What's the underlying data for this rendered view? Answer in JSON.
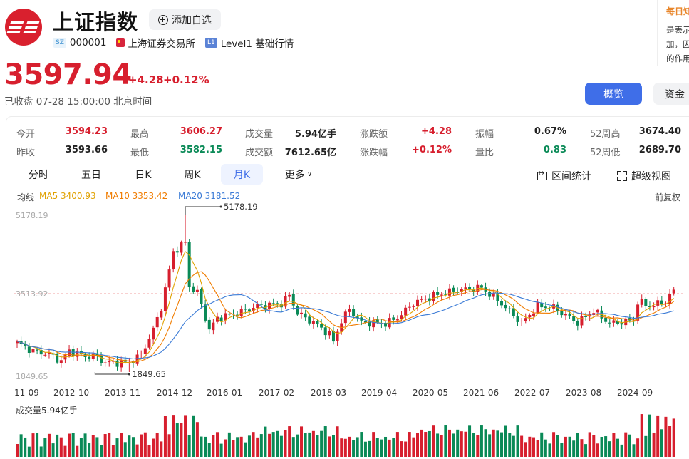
{
  "header": {
    "title": "上证指数",
    "add_label": "添加自选",
    "code_badge": "SZ",
    "code": "000001",
    "exchange": "上海证券交易所",
    "level_badge": "L1",
    "level": "Level1 基础行情"
  },
  "quote": {
    "price": "3597.94",
    "change": "+4.28",
    "change_pct": "+0.12%",
    "status": "已收盘  07-28 15:00:00 北京时间"
  },
  "buttons": {
    "overview": "概览",
    "fund": "资金"
  },
  "side_panel": {
    "title": "每日知",
    "lines": [
      "是表示",
      "加，因",
      "的作用"
    ]
  },
  "stats": [
    {
      "label": "今开",
      "value": "3594.23",
      "color": "up"
    },
    {
      "label": "最高",
      "value": "3606.27",
      "color": "up"
    },
    {
      "label": "成交量",
      "value": "5.94亿手",
      "color": ""
    },
    {
      "label": "涨跌额",
      "value": "+4.28",
      "color": "up"
    },
    {
      "label": "振幅",
      "value": "0.67%",
      "color": ""
    },
    {
      "label": "52周高",
      "value": "3674.40",
      "color": ""
    },
    {
      "label": "昨收",
      "value": "3593.66",
      "color": ""
    },
    {
      "label": "最低",
      "value": "3582.15",
      "color": "down"
    },
    {
      "label": "成交额",
      "value": "7612.65亿",
      "color": ""
    },
    {
      "label": "涨跌幅",
      "value": "+0.12%",
      "color": "up"
    },
    {
      "label": "量比",
      "value": "0.83",
      "color": "down"
    },
    {
      "label": "52周低",
      "value": "2689.70",
      "color": ""
    }
  ],
  "period_tabs": [
    "分时",
    "五日",
    "日K",
    "周K",
    "月K",
    "更多"
  ],
  "active_tab": "月K",
  "tools": {
    "range": "区间统计",
    "fullscreen": "超级视图"
  },
  "indicators": {
    "label": "均线",
    "ma5": "MA5 3400.93",
    "ma10": "MA10 3353.42",
    "ma20": "MA20 3181.52",
    "adjust": "前复权"
  },
  "volume_label": "成交量5.94亿手",
  "colors": {
    "up": "#d71f2e",
    "down": "#0a8a57",
    "ma5": "#e0a100",
    "ma10": "#f07c00",
    "ma20": "#3b7bd6",
    "accent": "#3f6ee8"
  },
  "chart_data": {
    "type": "candlestick",
    "period": "monthly",
    "y_axis_labels": [
      "5178.19",
      "3513.92",
      "1849.65"
    ],
    "ylim": [
      1849.65,
      5178.19
    ],
    "x_ticks": [
      "11-09",
      "2012-10",
      "2013-11",
      "2014-12",
      "2016-01",
      "2017-02",
      "2018-03",
      "2019-04",
      "2020-05",
      "2021-06",
      "2022-07",
      "2023-08",
      "2024-09"
    ],
    "annotations": {
      "max": "5178.19",
      "min": "1849.65"
    },
    "reference_line": 3513.92,
    "anchors": [
      {
        "month": 0,
        "close": 2470
      },
      {
        "month": 4,
        "close": 2290
      },
      {
        "month": 8,
        "close": 2230
      },
      {
        "month": 11,
        "close": 2080
      },
      {
        "month": 13,
        "close": 2300
      },
      {
        "month": 17,
        "close": 2180
      },
      {
        "month": 19,
        "close": 2200
      },
      {
        "month": 22,
        "close": 2050
      },
      {
        "month": 28,
        "close": 2050
      },
      {
        "month": 31,
        "close": 2220
      },
      {
        "month": 34,
        "close": 2750
      },
      {
        "month": 36,
        "close": 3220
      },
      {
        "month": 39,
        "close": 4400
      },
      {
        "month": 42,
        "close": 4611
      },
      {
        "month": 43,
        "close": 3660
      },
      {
        "month": 45,
        "close": 3540
      },
      {
        "month": 48,
        "close": 2740
      },
      {
        "month": 50,
        "close": 3000
      },
      {
        "month": 55,
        "close": 3100
      },
      {
        "month": 60,
        "close": 3250
      },
      {
        "month": 66,
        "close": 3300
      },
      {
        "month": 68,
        "close": 3480
      },
      {
        "month": 70,
        "close": 3100
      },
      {
        "month": 75,
        "close": 2850
      },
      {
        "month": 78,
        "close": 2650
      },
      {
        "month": 79,
        "close": 2494
      },
      {
        "month": 81,
        "close": 2940
      },
      {
        "month": 83,
        "close": 3180
      },
      {
        "month": 86,
        "close": 2900
      },
      {
        "month": 92,
        "close": 2880
      },
      {
        "month": 95,
        "close": 3000
      },
      {
        "month": 99,
        "close": 3310
      },
      {
        "month": 104,
        "close": 3470
      },
      {
        "month": 110,
        "close": 3590
      },
      {
        "month": 116,
        "close": 3640
      },
      {
        "month": 121,
        "close": 3300
      },
      {
        "month": 126,
        "close": 2890
      },
      {
        "month": 130,
        "close": 3250
      },
      {
        "month": 134,
        "close": 3210
      },
      {
        "month": 140,
        "close": 2900
      },
      {
        "month": 144,
        "close": 3150
      },
      {
        "month": 148,
        "close": 2880
      },
      {
        "month": 154,
        "close": 2950
      },
      {
        "month": 155,
        "close": 3336
      },
      {
        "month": 158,
        "close": 3250
      },
      {
        "month": 162,
        "close": 3350
      },
      {
        "month": 164,
        "close": 3598
      }
    ]
  }
}
